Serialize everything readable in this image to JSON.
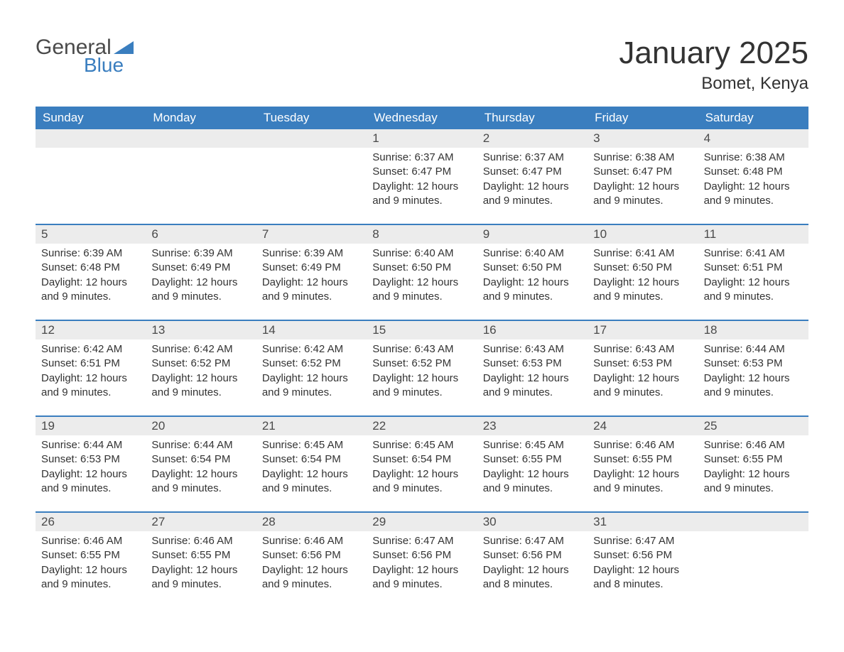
{
  "logo": {
    "text_general": "General",
    "text_blue": "Blue",
    "flag_color": "#3a7ebf"
  },
  "title": "January 2025",
  "location": "Bomet, Kenya",
  "colors": {
    "header_bg": "#3a7ebf",
    "header_text": "#ffffff",
    "daynum_bg": "#ececec",
    "body_text": "#333333",
    "week_border": "#3a7ebf",
    "page_bg": "#ffffff"
  },
  "day_labels": [
    "Sunday",
    "Monday",
    "Tuesday",
    "Wednesday",
    "Thursday",
    "Friday",
    "Saturday"
  ],
  "labels": {
    "sunrise_prefix": "Sunrise: ",
    "sunset_prefix": "Sunset: ",
    "daylight_prefix": "Daylight: "
  },
  "weeks": [
    [
      {
        "empty": true
      },
      {
        "empty": true
      },
      {
        "empty": true
      },
      {
        "day": "1",
        "sunrise": "6:37 AM",
        "sunset": "6:47 PM",
        "daylight": "12 hours and 9 minutes."
      },
      {
        "day": "2",
        "sunrise": "6:37 AM",
        "sunset": "6:47 PM",
        "daylight": "12 hours and 9 minutes."
      },
      {
        "day": "3",
        "sunrise": "6:38 AM",
        "sunset": "6:47 PM",
        "daylight": "12 hours and 9 minutes."
      },
      {
        "day": "4",
        "sunrise": "6:38 AM",
        "sunset": "6:48 PM",
        "daylight": "12 hours and 9 minutes."
      }
    ],
    [
      {
        "day": "5",
        "sunrise": "6:39 AM",
        "sunset": "6:48 PM",
        "daylight": "12 hours and 9 minutes."
      },
      {
        "day": "6",
        "sunrise": "6:39 AM",
        "sunset": "6:49 PM",
        "daylight": "12 hours and 9 minutes."
      },
      {
        "day": "7",
        "sunrise": "6:39 AM",
        "sunset": "6:49 PM",
        "daylight": "12 hours and 9 minutes."
      },
      {
        "day": "8",
        "sunrise": "6:40 AM",
        "sunset": "6:50 PM",
        "daylight": "12 hours and 9 minutes."
      },
      {
        "day": "9",
        "sunrise": "6:40 AM",
        "sunset": "6:50 PM",
        "daylight": "12 hours and 9 minutes."
      },
      {
        "day": "10",
        "sunrise": "6:41 AM",
        "sunset": "6:50 PM",
        "daylight": "12 hours and 9 minutes."
      },
      {
        "day": "11",
        "sunrise": "6:41 AM",
        "sunset": "6:51 PM",
        "daylight": "12 hours and 9 minutes."
      }
    ],
    [
      {
        "day": "12",
        "sunrise": "6:42 AM",
        "sunset": "6:51 PM",
        "daylight": "12 hours and 9 minutes."
      },
      {
        "day": "13",
        "sunrise": "6:42 AM",
        "sunset": "6:52 PM",
        "daylight": "12 hours and 9 minutes."
      },
      {
        "day": "14",
        "sunrise": "6:42 AM",
        "sunset": "6:52 PM",
        "daylight": "12 hours and 9 minutes."
      },
      {
        "day": "15",
        "sunrise": "6:43 AM",
        "sunset": "6:52 PM",
        "daylight": "12 hours and 9 minutes."
      },
      {
        "day": "16",
        "sunrise": "6:43 AM",
        "sunset": "6:53 PM",
        "daylight": "12 hours and 9 minutes."
      },
      {
        "day": "17",
        "sunrise": "6:43 AM",
        "sunset": "6:53 PM",
        "daylight": "12 hours and 9 minutes."
      },
      {
        "day": "18",
        "sunrise": "6:44 AM",
        "sunset": "6:53 PM",
        "daylight": "12 hours and 9 minutes."
      }
    ],
    [
      {
        "day": "19",
        "sunrise": "6:44 AM",
        "sunset": "6:53 PM",
        "daylight": "12 hours and 9 minutes."
      },
      {
        "day": "20",
        "sunrise": "6:44 AM",
        "sunset": "6:54 PM",
        "daylight": "12 hours and 9 minutes."
      },
      {
        "day": "21",
        "sunrise": "6:45 AM",
        "sunset": "6:54 PM",
        "daylight": "12 hours and 9 minutes."
      },
      {
        "day": "22",
        "sunrise": "6:45 AM",
        "sunset": "6:54 PM",
        "daylight": "12 hours and 9 minutes."
      },
      {
        "day": "23",
        "sunrise": "6:45 AM",
        "sunset": "6:55 PM",
        "daylight": "12 hours and 9 minutes."
      },
      {
        "day": "24",
        "sunrise": "6:46 AM",
        "sunset": "6:55 PM",
        "daylight": "12 hours and 9 minutes."
      },
      {
        "day": "25",
        "sunrise": "6:46 AM",
        "sunset": "6:55 PM",
        "daylight": "12 hours and 9 minutes."
      }
    ],
    [
      {
        "day": "26",
        "sunrise": "6:46 AM",
        "sunset": "6:55 PM",
        "daylight": "12 hours and 9 minutes."
      },
      {
        "day": "27",
        "sunrise": "6:46 AM",
        "sunset": "6:55 PM",
        "daylight": "12 hours and 9 minutes."
      },
      {
        "day": "28",
        "sunrise": "6:46 AM",
        "sunset": "6:56 PM",
        "daylight": "12 hours and 9 minutes."
      },
      {
        "day": "29",
        "sunrise": "6:47 AM",
        "sunset": "6:56 PM",
        "daylight": "12 hours and 9 minutes."
      },
      {
        "day": "30",
        "sunrise": "6:47 AM",
        "sunset": "6:56 PM",
        "daylight": "12 hours and 8 minutes."
      },
      {
        "day": "31",
        "sunrise": "6:47 AM",
        "sunset": "6:56 PM",
        "daylight": "12 hours and 8 minutes."
      },
      {
        "empty": true
      }
    ]
  ]
}
